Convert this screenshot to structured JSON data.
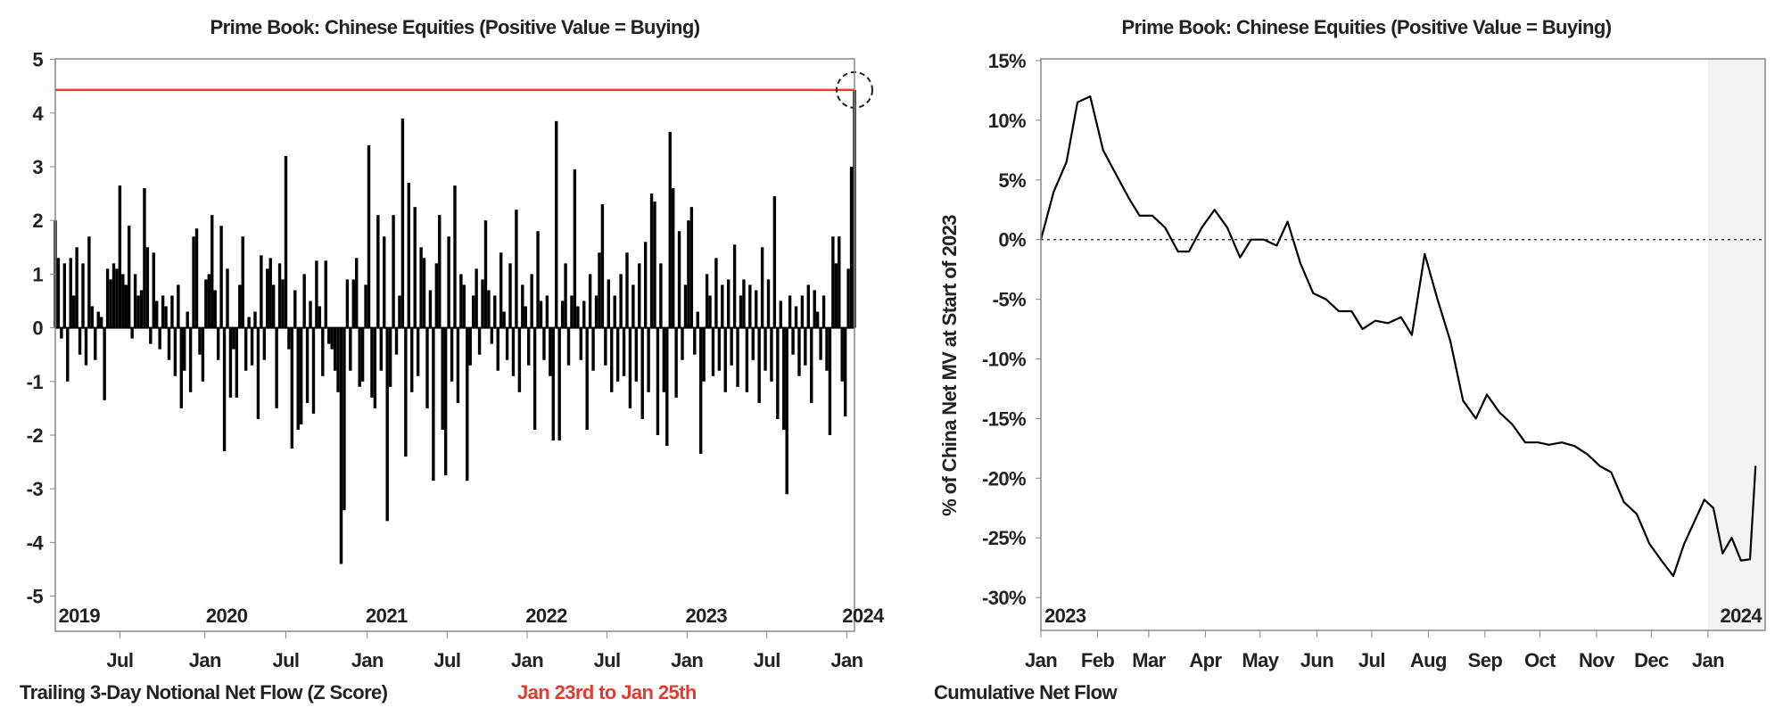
{
  "colors": {
    "bars": "#000000",
    "highlight": "#e53a2f",
    "shade": "#f1f3f0",
    "axis": "#888888"
  },
  "chart_data": [
    {
      "type": "bar",
      "title": "Prime Book: Chinese Equities (Positive Value = Buying)",
      "xlabel": "Trailing 3-Day Notional Net Flow (Z Score)",
      "annotation": "Jan 23rd to Jan 25th",
      "highlight_level": 4.43,
      "ylim": [
        -5.66,
        5.0
      ],
      "yticks": [
        "5",
        "4",
        "3",
        "2",
        "1",
        "0",
        "-1",
        "-2",
        "-3",
        "-4",
        "-5"
      ],
      "ytick_values": [
        5,
        4,
        3,
        2,
        1,
        0,
        -1,
        -2,
        -3,
        -4,
        -5
      ],
      "xtick_labels": [
        "Jul",
        "Jan",
        "Jul",
        "Jan",
        "Jul",
        "Jan",
        "Jul",
        "Jan",
        "Jul",
        "Jan"
      ],
      "xtick_weeks": [
        21,
        48.7,
        75,
        101.5,
        127.5,
        153.5,
        179.5,
        205.5,
        231.5,
        257.5
      ],
      "year_labels": [
        "2019",
        "2020",
        "2021",
        "2022",
        "2023",
        "2024"
      ],
      "year_label_weeks": [
        1,
        49,
        101,
        153,
        205,
        256
      ],
      "x_unit": "weeks since early Feb 2019",
      "weekly_values": [
        2.0,
        1.3,
        -0.2,
        1.2,
        -1.0,
        1.3,
        0.6,
        1.5,
        -0.5,
        1.2,
        -0.7,
        1.7,
        0.4,
        -0.6,
        0.3,
        0.2,
        -1.35,
        1.1,
        0.9,
        1.2,
        1.1,
        2.65,
        1.0,
        0.8,
        1.9,
        -0.2,
        1.0,
        0.6,
        0.7,
        2.6,
        1.5,
        -0.3,
        1.4,
        0.5,
        -0.4,
        0.6,
        0.4,
        -0.6,
        0.6,
        -0.9,
        0.8,
        -1.5,
        -0.8,
        0.3,
        -1.2,
        1.7,
        1.85,
        -0.5,
        -1.0,
        0.9,
        1.0,
        2.1,
        0.7,
        -0.6,
        1.9,
        -2.3,
        1.1,
        -1.3,
        -0.4,
        -1.3,
        0.8,
        1.7,
        -0.8,
        0.2,
        -0.7,
        0.3,
        -1.7,
        1.35,
        -0.6,
        1.1,
        1.3,
        0.8,
        -1.5,
        1.2,
        0.9,
        3.2,
        -0.4,
        -2.25,
        0.7,
        -1.9,
        -1.8,
        1.0,
        -1.4,
        0.5,
        -1.6,
        1.25,
        0.4,
        -0.9,
        1.25,
        -0.3,
        -0.4,
        -0.8,
        -1.2,
        -4.4,
        -3.4,
        0.9,
        -0.8,
        0.9,
        1.3,
        -1.1,
        -1.0,
        0.8,
        3.4,
        -1.3,
        -1.5,
        2.1,
        -0.8,
        1.7,
        -3.6,
        -1.1,
        2.1,
        -0.5,
        0.6,
        3.9,
        -2.4,
        2.7,
        -1.2,
        2.25,
        -0.9,
        1.5,
        1.3,
        -1.5,
        0.7,
        -2.85,
        1.2,
        2.1,
        -1.9,
        -2.75,
        1.7,
        -1.0,
        2.65,
        -1.4,
        1.0,
        0.8,
        -2.85,
        -0.7,
        0.6,
        1.1,
        -0.5,
        0.9,
        2.0,
        0.7,
        -0.3,
        0.6,
        -0.8,
        1.4,
        0.3,
        -0.6,
        1.2,
        -0.9,
        2.2,
        -1.2,
        0.8,
        0.4,
        -0.7,
        1.0,
        -1.9,
        1.8,
        0.5,
        -0.6,
        0.6,
        -0.9,
        -2.1,
        3.85,
        -2.1,
        0.5,
        1.2,
        -0.7,
        0.6,
        2.95,
        0.4,
        -0.6,
        0.5,
        -1.9,
        1.0,
        -0.8,
        0.6,
        1.4,
        2.3,
        -0.7,
        0.9,
        -1.2,
        0.6,
        -1.0,
        1.0,
        -0.9,
        1.4,
        -1.5,
        0.8,
        -1.0,
        1.2,
        -1.7,
        1.6,
        -1.2,
        2.5,
        2.35,
        -2.0,
        1.2,
        -1.2,
        -2.2,
        3.65,
        2.6,
        -1.3,
        1.8,
        -0.6,
        0.8,
        2.0,
        2.25,
        -0.5,
        0.3,
        -2.35,
        -1.0,
        1.0,
        0.6,
        -0.9,
        1.3,
        -0.8,
        0.8,
        -1.2,
        0.9,
        -0.7,
        1.55,
        -1.1,
        0.6,
        0.9,
        -1.2,
        0.8,
        -0.6,
        0.7,
        -1.4,
        1.5,
        -0.8,
        0.9,
        -1.0,
        2.45,
        -1.7,
        0.5,
        -1.9,
        -3.1,
        0.6,
        -0.5,
        0.4,
        -0.9,
        0.6,
        -0.7,
        0.8,
        -1.4,
        0.7,
        0.3,
        -0.6,
        0.6,
        -0.8,
        -2.0,
        1.7,
        1.2,
        1.7,
        -1.0,
        -1.65,
        1.1,
        3.0,
        4.43
      ]
    },
    {
      "type": "line",
      "title": "Prime Book: Chinese Equities (Positive Value = Buying)",
      "xlabel": "Cumulative Net Flow",
      "ylabel": "% of China Net MV at Start of 2023",
      "ylim": [
        -32.8,
        15.2
      ],
      "yticks": [
        "15%",
        "10%",
        "5%",
        "0%",
        "-5%",
        "-10%",
        "-15%",
        "-20%",
        "-25%",
        "-30%"
      ],
      "ytick_values": [
        15,
        10,
        5,
        0,
        -5,
        -10,
        -15,
        -20,
        -25,
        -30
      ],
      "xtick_labels": [
        "Jan",
        "Feb",
        "Mar",
        "Apr",
        "May",
        "Jun",
        "Jul",
        "Aug",
        "Sep",
        "Oct",
        "Nov",
        "Dec",
        "Jan"
      ],
      "xtick_days": [
        0,
        31,
        59,
        90,
        120,
        151,
        181,
        212,
        243,
        273,
        304,
        334,
        365
      ],
      "year_labels": [
        "2023",
        "2024"
      ],
      "shaded_from_day": 365,
      "x_unit": "days since Jan 1 2023",
      "points": [
        [
          0,
          0
        ],
        [
          7,
          4.0
        ],
        [
          14,
          6.5
        ],
        [
          20,
          11.5
        ],
        [
          27,
          12.0
        ],
        [
          34,
          7.5
        ],
        [
          41,
          5.5
        ],
        [
          48,
          3.5
        ],
        [
          54,
          2.0
        ],
        [
          61,
          2.0
        ],
        [
          68,
          1.0
        ],
        [
          75,
          -1.0
        ],
        [
          81,
          -1.0
        ],
        [
          88,
          1.0
        ],
        [
          95,
          2.5
        ],
        [
          102,
          1.0
        ],
        [
          109,
          -1.5
        ],
        [
          115,
          0.0
        ],
        [
          122,
          0.0
        ],
        [
          129,
          -0.5
        ],
        [
          135,
          1.5
        ],
        [
          142,
          -2.0
        ],
        [
          149,
          -4.5
        ],
        [
          156,
          -5.0
        ],
        [
          163,
          -6.0
        ],
        [
          170,
          -6.0
        ],
        [
          176,
          -7.5
        ],
        [
          183,
          -6.8
        ],
        [
          190,
          -7.0
        ],
        [
          197,
          -6.5
        ],
        [
          203,
          -8.0
        ],
        [
          210,
          -1.2
        ],
        [
          217,
          -5.0
        ],
        [
          224,
          -8.5
        ],
        [
          231,
          -13.5
        ],
        [
          238,
          -15.0
        ],
        [
          244,
          -13.0
        ],
        [
          251,
          -14.5
        ],
        [
          258,
          -15.5
        ],
        [
          265,
          -17.0
        ],
        [
          272,
          -17.0
        ],
        [
          278,
          -17.2
        ],
        [
          285,
          -17.0
        ],
        [
          292,
          -17.3
        ],
        [
          299,
          -18.0
        ],
        [
          306,
          -19.0
        ],
        [
          312,
          -19.5
        ],
        [
          319,
          -22.0
        ],
        [
          326,
          -23.0
        ],
        [
          333,
          -25.5
        ],
        [
          340,
          -27.0
        ],
        [
          346,
          -28.2
        ],
        [
          352,
          -25.5
        ],
        [
          358,
          -23.5
        ],
        [
          363,
          -21.8
        ],
        [
          368,
          -22.5
        ],
        [
          373,
          -26.3
        ],
        [
          378,
          -25.0
        ],
        [
          383,
          -26.9
        ],
        [
          388,
          -26.8
        ],
        [
          391,
          -19.0
        ]
      ]
    }
  ]
}
